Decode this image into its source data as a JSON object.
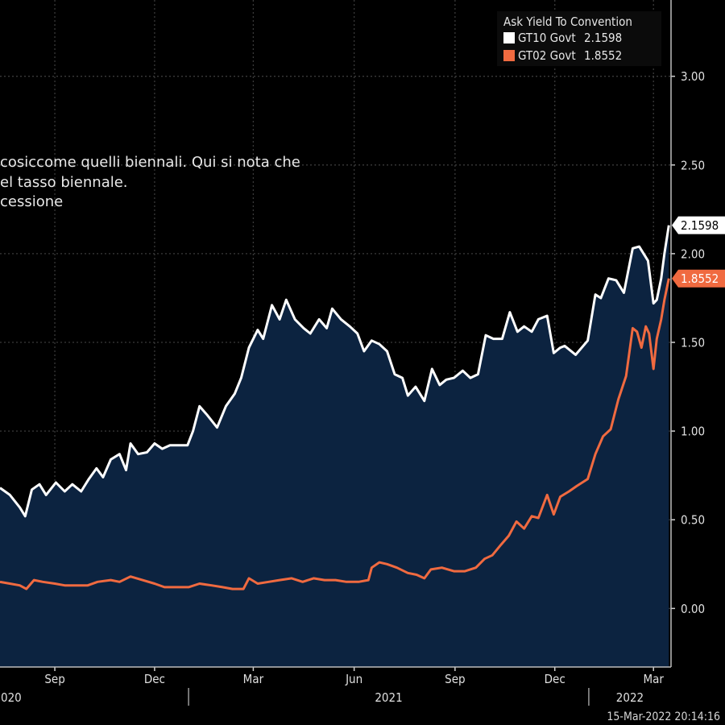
{
  "overlay_text": [
    "cosiccome quelli biennali. Qui si nota che",
    "el tasso biennale.",
    "cessione"
  ],
  "legend": {
    "title": "Ask Yield To Convention",
    "items": [
      {
        "symbol": "GT10 Govt",
        "value": "2.1598",
        "color": "#ffffff"
      },
      {
        "symbol": "GT02 Govt",
        "value": "1.8552",
        "color": "#f06a40"
      }
    ]
  },
  "footer_timestamp": "15-Mar-2022 20:14:16",
  "colors": {
    "background": "#000000",
    "area_fill": "#0c2340",
    "gt10_line": "#ffffff",
    "gt02_line": "#f06a40",
    "grid": "#3a3a3a"
  },
  "chart_data": {
    "type": "line",
    "title": "",
    "xlabel": "",
    "ylabel": "",
    "ylim": [
      -0.33,
      3.43
    ],
    "y_ticks": [
      "0.00",
      "0.50",
      "1.00",
      "1.50",
      "2.00",
      "2.50",
      "3.00"
    ],
    "x_ticks": [
      "Sep",
      "Dec",
      "Mar",
      "Jun",
      "Sep",
      "Dec",
      "Mar"
    ],
    "x_year_labels": [
      "020",
      "2021",
      "2022"
    ],
    "last_value_labels": [
      "2.1598",
      "1.8552"
    ],
    "x_tick_dates": [
      "2020-09-01",
      "2020-12-01",
      "2021-03-01",
      "2021-06-01",
      "2021-09-01",
      "2021-12-01",
      "2022-03-01"
    ],
    "x_range": [
      "2020-07-13",
      "2022-03-17"
    ],
    "series": [
      {
        "name": "GT10 Govt",
        "area": true,
        "points": [
          [
            "2020-07-13",
            0.68
          ],
          [
            "2020-07-22",
            0.64
          ],
          [
            "2020-07-31",
            0.57
          ],
          [
            "2020-08-05",
            0.52
          ],
          [
            "2020-08-11",
            0.67
          ],
          [
            "2020-08-18",
            0.7
          ],
          [
            "2020-08-24",
            0.64
          ],
          [
            "2020-09-02",
            0.71
          ],
          [
            "2020-09-10",
            0.66
          ],
          [
            "2020-09-17",
            0.7
          ],
          [
            "2020-09-25",
            0.66
          ],
          [
            "2020-10-02",
            0.73
          ],
          [
            "2020-10-09",
            0.79
          ],
          [
            "2020-10-15",
            0.74
          ],
          [
            "2020-10-22",
            0.84
          ],
          [
            "2020-10-30",
            0.87
          ],
          [
            "2020-11-05",
            0.78
          ],
          [
            "2020-11-09",
            0.93
          ],
          [
            "2020-11-16",
            0.87
          ],
          [
            "2020-11-24",
            0.88
          ],
          [
            "2020-12-01",
            0.93
          ],
          [
            "2020-12-08",
            0.9
          ],
          [
            "2020-12-15",
            0.92
          ],
          [
            "2020-12-22",
            0.92
          ],
          [
            "2020-12-31",
            0.92
          ],
          [
            "2021-01-05",
            1.0
          ],
          [
            "2021-01-11",
            1.14
          ],
          [
            "2021-01-18",
            1.09
          ],
          [
            "2021-01-27",
            1.02
          ],
          [
            "2021-02-04",
            1.14
          ],
          [
            "2021-02-12",
            1.21
          ],
          [
            "2021-02-18",
            1.3
          ],
          [
            "2021-02-25",
            1.47
          ],
          [
            "2021-03-05",
            1.57
          ],
          [
            "2021-03-10",
            1.52
          ],
          [
            "2021-03-18",
            1.71
          ],
          [
            "2021-03-25",
            1.63
          ],
          [
            "2021-03-31",
            1.74
          ],
          [
            "2021-04-08",
            1.63
          ],
          [
            "2021-04-16",
            1.58
          ],
          [
            "2021-04-22",
            1.55
          ],
          [
            "2021-04-30",
            1.63
          ],
          [
            "2021-05-07",
            1.58
          ],
          [
            "2021-05-12",
            1.69
          ],
          [
            "2021-05-20",
            1.63
          ],
          [
            "2021-05-28",
            1.59
          ],
          [
            "2021-06-04",
            1.55
          ],
          [
            "2021-06-10",
            1.45
          ],
          [
            "2021-06-17",
            1.51
          ],
          [
            "2021-06-24",
            1.49
          ],
          [
            "2021-07-01",
            1.45
          ],
          [
            "2021-07-08",
            1.32
          ],
          [
            "2021-07-15",
            1.3
          ],
          [
            "2021-07-20",
            1.2
          ],
          [
            "2021-07-27",
            1.25
          ],
          [
            "2021-08-04",
            1.17
          ],
          [
            "2021-08-11",
            1.35
          ],
          [
            "2021-08-18",
            1.26
          ],
          [
            "2021-08-24",
            1.29
          ],
          [
            "2021-08-31",
            1.3
          ],
          [
            "2021-09-08",
            1.34
          ],
          [
            "2021-09-15",
            1.3
          ],
          [
            "2021-09-22",
            1.32
          ],
          [
            "2021-09-29",
            1.54
          ],
          [
            "2021-10-06",
            1.52
          ],
          [
            "2021-10-14",
            1.52
          ],
          [
            "2021-10-21",
            1.67
          ],
          [
            "2021-10-28",
            1.56
          ],
          [
            "2021-11-03",
            1.59
          ],
          [
            "2021-11-10",
            1.56
          ],
          [
            "2021-11-16",
            1.63
          ],
          [
            "2021-11-24",
            1.65
          ],
          [
            "2021-11-30",
            1.44
          ],
          [
            "2021-12-06",
            1.47
          ],
          [
            "2021-12-10",
            1.48
          ],
          [
            "2021-12-20",
            1.43
          ],
          [
            "2021-12-31",
            1.51
          ],
          [
            "2022-01-07",
            1.77
          ],
          [
            "2022-01-12",
            1.75
          ],
          [
            "2022-01-19",
            1.86
          ],
          [
            "2022-01-26",
            1.85
          ],
          [
            "2022-02-02",
            1.78
          ],
          [
            "2022-02-10",
            2.03
          ],
          [
            "2022-02-16",
            2.04
          ],
          [
            "2022-02-24",
            1.96
          ],
          [
            "2022-03-01",
            1.72
          ],
          [
            "2022-03-04",
            1.74
          ],
          [
            "2022-03-08",
            1.86
          ],
          [
            "2022-03-11",
            2.0
          ],
          [
            "2022-03-15",
            2.16
          ]
        ]
      },
      {
        "name": "GT02 Govt",
        "area": false,
        "points": [
          [
            "2020-07-13",
            0.15
          ],
          [
            "2020-07-22",
            0.14
          ],
          [
            "2020-07-31",
            0.13
          ],
          [
            "2020-08-06",
            0.11
          ],
          [
            "2020-08-13",
            0.16
          ],
          [
            "2020-08-21",
            0.15
          ],
          [
            "2020-09-01",
            0.14
          ],
          [
            "2020-09-10",
            0.13
          ],
          [
            "2020-09-20",
            0.13
          ],
          [
            "2020-10-01",
            0.13
          ],
          [
            "2020-10-10",
            0.15
          ],
          [
            "2020-10-22",
            0.16
          ],
          [
            "2020-10-30",
            0.15
          ],
          [
            "2020-11-09",
            0.18
          ],
          [
            "2020-11-20",
            0.16
          ],
          [
            "2020-12-01",
            0.14
          ],
          [
            "2020-12-10",
            0.12
          ],
          [
            "2020-12-20",
            0.12
          ],
          [
            "2021-01-01",
            0.12
          ],
          [
            "2021-01-11",
            0.14
          ],
          [
            "2021-01-22",
            0.13
          ],
          [
            "2021-02-01",
            0.12
          ],
          [
            "2021-02-10",
            0.11
          ],
          [
            "2021-02-20",
            0.11
          ],
          [
            "2021-02-25",
            0.17
          ],
          [
            "2021-03-05",
            0.14
          ],
          [
            "2021-03-15",
            0.15
          ],
          [
            "2021-03-25",
            0.16
          ],
          [
            "2021-04-05",
            0.17
          ],
          [
            "2021-04-15",
            0.15
          ],
          [
            "2021-04-25",
            0.17
          ],
          [
            "2021-05-05",
            0.16
          ],
          [
            "2021-05-15",
            0.16
          ],
          [
            "2021-05-25",
            0.15
          ],
          [
            "2021-06-05",
            0.15
          ],
          [
            "2021-06-14",
            0.16
          ],
          [
            "2021-06-17",
            0.23
          ],
          [
            "2021-06-24",
            0.26
          ],
          [
            "2021-07-01",
            0.25
          ],
          [
            "2021-07-10",
            0.23
          ],
          [
            "2021-07-20",
            0.2
          ],
          [
            "2021-07-28",
            0.19
          ],
          [
            "2021-08-04",
            0.17
          ],
          [
            "2021-08-10",
            0.22
          ],
          [
            "2021-08-20",
            0.23
          ],
          [
            "2021-08-31",
            0.21
          ],
          [
            "2021-09-10",
            0.21
          ],
          [
            "2021-09-20",
            0.23
          ],
          [
            "2021-09-28",
            0.28
          ],
          [
            "2021-10-05",
            0.3
          ],
          [
            "2021-10-13",
            0.36
          ],
          [
            "2021-10-20",
            0.41
          ],
          [
            "2021-10-27",
            0.49
          ],
          [
            "2021-11-03",
            0.45
          ],
          [
            "2021-11-10",
            0.52
          ],
          [
            "2021-11-16",
            0.51
          ],
          [
            "2021-11-24",
            0.64
          ],
          [
            "2021-11-30",
            0.53
          ],
          [
            "2021-12-06",
            0.63
          ],
          [
            "2021-12-14",
            0.66
          ],
          [
            "2021-12-21",
            0.69
          ],
          [
            "2021-12-31",
            0.73
          ],
          [
            "2022-01-07",
            0.87
          ],
          [
            "2022-01-14",
            0.97
          ],
          [
            "2022-01-21",
            1.01
          ],
          [
            "2022-01-28",
            1.18
          ],
          [
            "2022-02-04",
            1.31
          ],
          [
            "2022-02-10",
            1.58
          ],
          [
            "2022-02-14",
            1.56
          ],
          [
            "2022-02-18",
            1.47
          ],
          [
            "2022-02-22",
            1.59
          ],
          [
            "2022-02-25",
            1.55
          ],
          [
            "2022-03-01",
            1.35
          ],
          [
            "2022-03-04",
            1.52
          ],
          [
            "2022-03-08",
            1.63
          ],
          [
            "2022-03-11",
            1.74
          ],
          [
            "2022-03-15",
            1.86
          ]
        ]
      }
    ]
  }
}
